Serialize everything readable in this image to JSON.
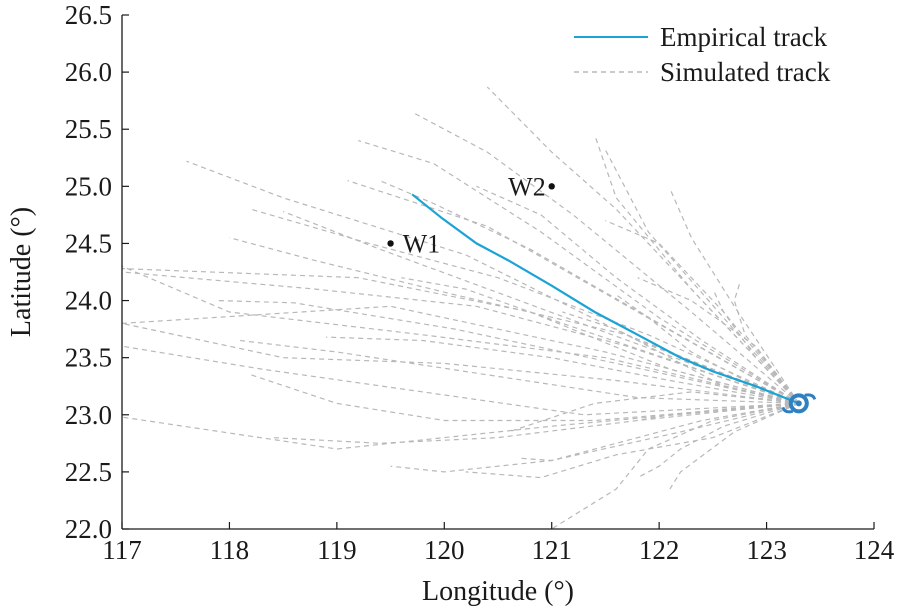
{
  "chart_data": {
    "type": "line",
    "xlabel": "Longitude (°)",
    "ylabel": "Latitude (°)",
    "xlim": [
      117,
      124
    ],
    "ylim": [
      22.0,
      26.5
    ],
    "xticks": [
      "117",
      "118",
      "119",
      "120",
      "121",
      "122",
      "123",
      "124"
    ],
    "yticks": [
      "22.0",
      "22.5",
      "23.0",
      "23.5",
      "24.0",
      "24.5",
      "25.0",
      "25.5",
      "26.0",
      "26.5"
    ],
    "grid": false,
    "legend_position": "top-right",
    "colors": {
      "empirical": "#1ba3d6",
      "simulated": "#b8b8b8",
      "typhoon": "#2f7fc1",
      "station": "#111111"
    },
    "typhoon_icon": "typhoon-symbol-icon",
    "origin": {
      "x": 123.3,
      "y": 23.1
    },
    "series": [
      {
        "name": "Empirical track",
        "style": "solid",
        "x": [
          123.3,
          122.9,
          122.5,
          122.2,
          121.8,
          121.4,
          121.0,
          120.6,
          120.3,
          119.98,
          119.7
        ],
        "y": [
          23.1,
          23.25,
          23.38,
          23.5,
          23.7,
          23.9,
          24.13,
          24.35,
          24.5,
          24.72,
          24.93
        ]
      },
      {
        "name": "Simulated track",
        "style": "dashed",
        "tracks": [
          {
            "x": [
              123.3,
              122.1,
              120.8,
              119.2,
              117.0
            ],
            "y": [
              23.1,
              23.4,
              23.9,
              24.2,
              24.28
            ]
          },
          {
            "x": [
              123.3,
              121.5,
              119.5,
              117.0
            ],
            "y": [
              23.1,
              23.55,
              23.95,
              23.8
            ]
          },
          {
            "x": [
              123.3,
              121.0,
              119.0,
              117.0
            ],
            "y": [
              23.1,
              22.9,
              22.7,
              22.98
            ]
          },
          {
            "x": [
              123.3,
              121.5,
              119.8,
              118.0,
              117.0
            ],
            "y": [
              23.1,
              23.5,
              23.7,
              23.9,
              24.3
            ]
          },
          {
            "x": [
              123.3,
              121.8,
              120.2,
              118.5,
              117.6
            ],
            "y": [
              23.1,
              23.65,
              24.4,
              24.9,
              25.22
            ]
          },
          {
            "x": [
              123.3,
              122.0,
              120.9,
              119.9,
              119.2
            ],
            "y": [
              23.1,
              23.85,
              24.6,
              25.2,
              25.4
            ]
          },
          {
            "x": [
              123.3,
              122.3,
              121.2,
              120.4,
              119.7
            ],
            "y": [
              23.1,
              23.9,
              24.75,
              25.3,
              25.65
            ]
          },
          {
            "x": [
              123.3,
              122.4,
              121.6,
              121.0,
              120.4
            ],
            "y": [
              23.1,
              24.0,
              24.8,
              25.3,
              25.87
            ]
          },
          {
            "x": [
              123.3,
              122.3,
              121.6,
              121.4
            ],
            "y": [
              23.1,
              24.1,
              24.9,
              25.45
            ]
          },
          {
            "x": [
              123.3,
              122.6,
              121.9,
              121.5
            ],
            "y": [
              23.1,
              23.85,
              24.6,
              25.32
            ]
          },
          {
            "x": [
              123.3,
              122.7,
              122.3,
              122.1
            ],
            "y": [
              23.1,
              23.95,
              24.55,
              24.98
            ]
          },
          {
            "x": [
              123.3,
              122.8,
              122.7,
              122.75
            ],
            "y": [
              23.1,
              23.7,
              24.0,
              24.15
            ]
          },
          {
            "x": [
              123.3,
              122.0,
              120.8,
              119.9,
              119.4
            ],
            "y": [
              23.1,
              23.8,
              24.45,
              24.85,
              25.05
            ]
          },
          {
            "x": [
              123.3,
              121.9,
              120.5,
              119.3,
              118.2
            ],
            "y": [
              23.1,
              23.7,
              24.2,
              24.5,
              24.8
            ]
          },
          {
            "x": [
              123.3,
              121.7,
              120.3,
              118.8,
              117.0
            ],
            "y": [
              23.1,
              23.6,
              23.95,
              24.1,
              24.25
            ]
          },
          {
            "x": [
              123.3,
              121.6,
              120.1,
              118.6,
              117.9
            ],
            "y": [
              23.1,
              23.45,
              23.75,
              23.98,
              24.0
            ]
          },
          {
            "x": [
              123.3,
              121.6,
              120.0,
              118.5,
              117.0
            ],
            "y": [
              23.1,
              23.3,
              23.45,
              23.5,
              23.8
            ]
          },
          {
            "x": [
              123.3,
              121.3,
              119.8,
              118.3,
              117.0
            ],
            "y": [
              23.1,
              23.0,
              23.2,
              23.4,
              23.6
            ]
          },
          {
            "x": [
              123.3,
              121.8,
              120.4,
              119.0,
              118.1
            ],
            "y": [
              23.1,
              23.15,
              23.35,
              23.55,
              23.65
            ]
          },
          {
            "x": [
              123.3,
              122.1,
              121.0,
              119.8,
              118.9
            ],
            "y": [
              23.1,
              23.3,
              23.5,
              23.65,
              23.68
            ]
          },
          {
            "x": [
              123.3,
              121.8,
              120.5,
              119.4,
              118.4
            ],
            "y": [
              23.1,
              22.95,
              22.8,
              22.75,
              22.8
            ]
          },
          {
            "x": [
              123.3,
              122.2,
              121.0,
              120.0,
              119.5
            ],
            "y": [
              23.1,
              22.85,
              22.6,
              22.5,
              22.55
            ]
          },
          {
            "x": [
              123.3,
              122.5,
              121.6,
              120.9,
              120.2
            ],
            "y": [
              23.1,
              22.8,
              22.65,
              22.45,
              22.5
            ]
          },
          {
            "x": [
              123.3,
              122.4,
              121.6,
              121.0,
              120.7
            ],
            "y": [
              23.1,
              22.95,
              22.75,
              22.6,
              22.62
            ]
          },
          {
            "x": [
              123.3,
              122.6,
              122.2,
              122.0,
              121.8
            ],
            "y": [
              23.1,
              22.9,
              22.7,
              22.55,
              22.45
            ]
          },
          {
            "x": [
              123.3,
              122.7,
              122.2,
              122.1
            ],
            "y": [
              23.1,
              22.85,
              22.5,
              22.35
            ]
          },
          {
            "x": [
              123.3,
              122.5,
              121.9,
              121.6,
              121.0
            ],
            "y": [
              23.1,
              22.95,
              22.7,
              22.35,
              22.0
            ]
          },
          {
            "x": [
              123.3,
              122.6,
              122.1,
              121.8
            ],
            "y": [
              23.1,
              23.05,
              23.0,
              22.95
            ]
          },
          {
            "x": [
              123.3,
              122.6,
              122.1,
              121.6,
              121.1
            ],
            "y": [
              23.1,
              23.25,
              23.5,
              23.75,
              23.9
            ]
          },
          {
            "x": [
              123.3,
              122.9,
              122.3,
              121.8
            ],
            "y": [
              23.1,
              23.6,
              24.0,
              24.2
            ]
          },
          {
            "x": [
              123.3,
              122.6,
              122.0,
              121.5
            ],
            "y": [
              23.1,
              23.9,
              24.5,
              24.7
            ]
          },
          {
            "x": [
              123.3,
              122.9,
              122.6,
              122.5
            ],
            "y": [
              23.1,
              23.5,
              23.9,
              24.1
            ]
          },
          {
            "x": [
              123.3,
              122.0,
              120.7,
              119.4,
              118.5
            ],
            "y": [
              23.1,
              23.55,
              24.0,
              24.45,
              24.78
            ]
          },
          {
            "x": [
              123.3,
              121.7,
              120.1,
              118.8,
              118.0
            ],
            "y": [
              23.1,
              23.7,
              24.05,
              24.35,
              24.55
            ]
          },
          {
            "x": [
              123.3,
              121.8,
              120.4,
              119.1
            ],
            "y": [
              23.1,
              23.9,
              24.65,
              25.05
            ]
          },
          {
            "x": [
              123.3,
              122.4,
              121.6,
              120.9,
              120.3
            ],
            "y": [
              23.1,
              23.65,
              24.2,
              24.75,
              25.0
            ]
          },
          {
            "x": [
              123.3,
              121.4,
              120.0,
              119.0,
              118.2
            ],
            "y": [
              23.1,
              22.95,
              22.95,
              23.1,
              23.35
            ]
          },
          {
            "x": [
              123.3,
              122.2,
              121.1,
              120.2,
              119.6
            ],
            "y": [
              23.1,
              23.45,
              23.8,
              24.1,
              24.2
            ]
          },
          {
            "x": [
              123.3,
              122.3,
              121.4,
              120.6
            ],
            "y": [
              23.1,
              23.2,
              23.1,
              22.85
            ]
          },
          {
            "x": [
              123.3,
              122.8,
              122.3,
              121.9,
              121.6
            ],
            "y": [
              23.1,
              23.3,
              23.55,
              23.85,
              24.05
            ]
          }
        ]
      }
    ],
    "annotations": [
      {
        "label": "W1",
        "x": 119.5,
        "y": 24.5,
        "label_side": "right"
      },
      {
        "label": "W2",
        "x": 121.0,
        "y": 25.0,
        "label_side": "left"
      }
    ]
  }
}
